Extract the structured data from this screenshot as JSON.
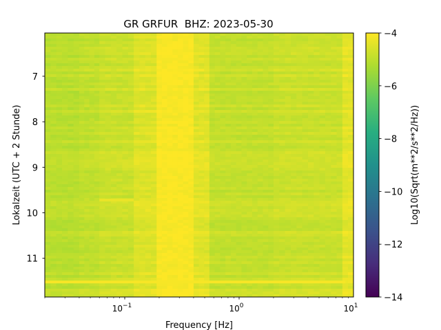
{
  "chart_data": {
    "type": "heatmap",
    "title": "GR GRFUR  BHZ: 2023-05-30",
    "xlabel": "Frequency [Hz]",
    "ylabel": "Lokalzeit (UTC + 2 Stunde)",
    "colorbar_label": "Log10(Sqrt(m**2/s**2/Hz))",
    "colormap": "viridis",
    "x_scale": "log",
    "xlim": [
      0.02,
      10
    ],
    "ylim": [
      11.85,
      6.05
    ],
    "clim": [
      -14,
      -4
    ],
    "x_ticks": [
      {
        "value": 0.1,
        "base": "10",
        "exp": "−1"
      },
      {
        "value": 1,
        "base": "10",
        "exp": "0"
      },
      {
        "value": 10,
        "base": "10",
        "exp": "1"
      }
    ],
    "y_ticks": [
      7,
      8,
      9,
      10,
      11
    ],
    "colorbar_ticks": [
      "−4",
      "−6",
      "−8",
      "−10",
      "−12",
      "−14"
    ],
    "colorbar_tick_values": [
      -4,
      -6,
      -8,
      -10,
      -12,
      -14
    ],
    "frequency_bands": [
      {
        "from": 0.02,
        "to": 0.04,
        "value": -5.0
      },
      {
        "from": 0.04,
        "to": 0.06,
        "value": -4.9
      },
      {
        "from": 0.06,
        "to": 0.12,
        "value": -4.75
      },
      {
        "from": 0.12,
        "to": 0.19,
        "value": -4.45
      },
      {
        "from": 0.19,
        "to": 0.4,
        "value": -4.05
      },
      {
        "from": 0.4,
        "to": 0.55,
        "value": -4.4
      },
      {
        "from": 0.55,
        "to": 2.0,
        "value": -4.85
      },
      {
        "from": 2.0,
        "to": 8.0,
        "value": -4.75
      },
      {
        "from": 8.0,
        "to": 10.0,
        "value": -4.35
      }
    ],
    "horizontal_features": [
      {
        "time": 11.52,
        "from": 0.02,
        "to": 8.5,
        "value": -4.1
      },
      {
        "time": 9.72,
        "from": 0.06,
        "to": 0.12,
        "value": -4.3
      }
    ]
  }
}
